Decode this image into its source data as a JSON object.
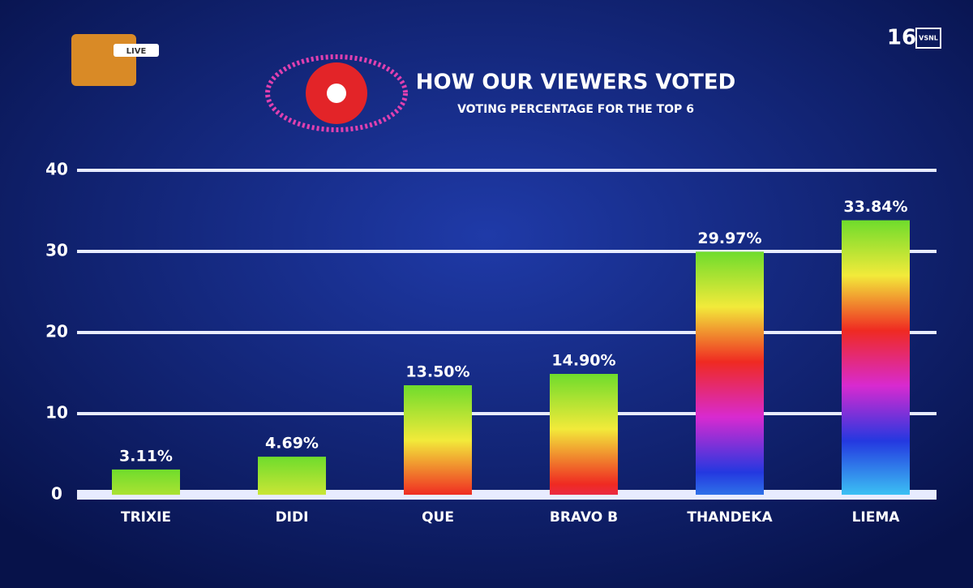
{
  "channel_badge": "LIVE",
  "age_rating": "16",
  "rating_codes": "VSNL",
  "chart_data": {
    "type": "bar",
    "title": "HOW OUR VIEWERS VOTED",
    "subtitle": "VOTING PERCENTAGE FOR THE TOP 6",
    "categories": [
      "TRIXIE",
      "DIDI",
      "QUE",
      "BRAVO B",
      "THANDEKA",
      "LIEMA"
    ],
    "values": [
      3.11,
      4.69,
      13.5,
      14.9,
      29.97,
      33.84
    ],
    "value_labels": [
      "3.11%",
      "4.69%",
      "13.50%",
      "14.90%",
      "29.97%",
      "33.84%"
    ],
    "colors": [
      "#6fdc2c",
      "#f2ea3a",
      "#ef2a22",
      "#d82ad0",
      "#2438e0",
      "#3cc4f4"
    ],
    "ylim": [
      0,
      40
    ],
    "yticks": [
      0,
      10,
      20,
      30,
      40
    ],
    "grid": true
  }
}
